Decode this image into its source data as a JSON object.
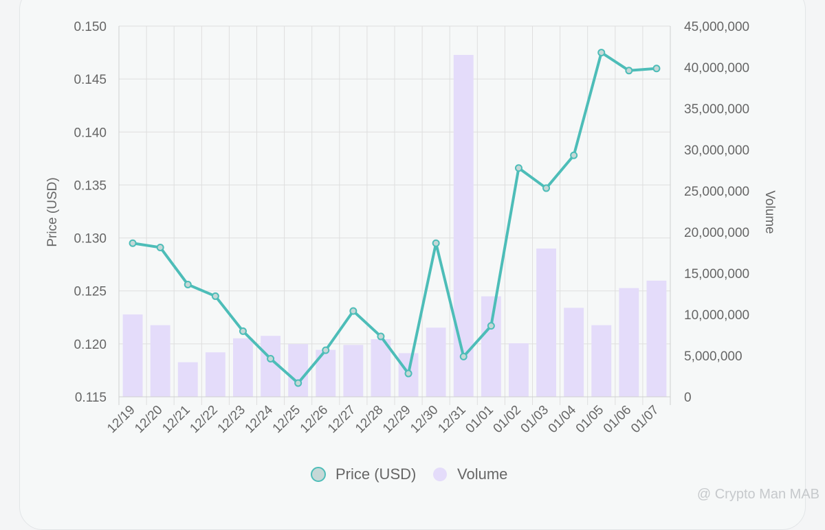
{
  "chart_data": {
    "type": "bar",
    "categories": [
      "12/19",
      "12/20",
      "12/21",
      "12/22",
      "12/23",
      "12/24",
      "12/25",
      "12/26",
      "12/27",
      "12/28",
      "12/29",
      "12/30",
      "12/31",
      "01/01",
      "01/02",
      "01/03",
      "01/04",
      "01/05",
      "01/06",
      "01/07"
    ],
    "series": [
      {
        "name": "Price (USD)",
        "kind": "line",
        "axis": "left",
        "color": "#4dbdb8",
        "values": [
          0.1295,
          0.1291,
          0.1256,
          0.1245,
          0.1212,
          0.1186,
          0.1163,
          0.1194,
          0.1231,
          0.1207,
          0.1172,
          0.1295,
          0.1188,
          0.1217,
          0.1366,
          0.1347,
          0.1378,
          0.1475,
          0.1458,
          0.146
        ]
      },
      {
        "name": "Volume",
        "kind": "bar",
        "axis": "right",
        "color": "#e4dcfa",
        "values": [
          10000000,
          8700000,
          4200000,
          5400000,
          7100000,
          7400000,
          6400000,
          5700000,
          6300000,
          7000000,
          5300000,
          8400000,
          41500000,
          12200000,
          6500000,
          18000000,
          10800000,
          8700000,
          13200000,
          14100000
        ]
      }
    ],
    "ylabel": "Price (USD)",
    "y2label": "Volume",
    "ylim": [
      0.115,
      0.15
    ],
    "y2lim": [
      0,
      45000000
    ],
    "yticks": [
      "0.115",
      "0.120",
      "0.125",
      "0.130",
      "0.135",
      "0.140",
      "0.145",
      "0.150"
    ],
    "y2ticks": [
      "0",
      "5,000,000",
      "10,000,000",
      "15,000,000",
      "20,000,000",
      "25,000,000",
      "30,000,000",
      "35,000,000",
      "40,000,000",
      "45,000,000"
    ],
    "legend": {
      "position": "bottom",
      "items": [
        "Price (USD)",
        "Volume"
      ]
    },
    "grid": true
  },
  "watermark": "@ Crypto Man MAB"
}
